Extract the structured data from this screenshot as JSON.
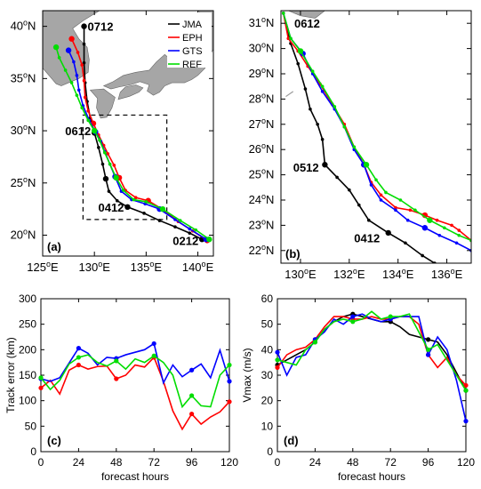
{
  "colors": {
    "JMA": "#000000",
    "EPH": "#ff0000",
    "GTS": "#0000ff",
    "REF": "#00dd00",
    "land": "#a6a6a6"
  },
  "chart_data": [
    {
      "id": "a",
      "type": "map-track",
      "panel_label": "(a)",
      "xlim": [
        125,
        141.5
      ],
      "ylim": [
        18,
        41.5
      ],
      "xticks": [
        125,
        130,
        135,
        140
      ],
      "xtick_labels": [
        "125°E",
        "130°E",
        "135°E",
        "140°E"
      ],
      "yticks": [
        20,
        25,
        30,
        35,
        40
      ],
      "ytick_labels": [
        "20°N",
        "25°N",
        "30°N",
        "35°N",
        "40°N"
      ],
      "legend": {
        "placement": "top-right",
        "entries": [
          "JMA",
          "EPH",
          "GTS",
          "REF"
        ]
      },
      "box": {
        "lon": [
          128.9,
          137.0
        ],
        "lat": [
          21.5,
          31.5
        ]
      },
      "labels": [
        {
          "text": "0712",
          "lon": 129.0,
          "lat": 40.0,
          "anchor": "left"
        },
        {
          "text": "0612",
          "lon": 130.0,
          "lat": 30.0,
          "anchor": "right"
        },
        {
          "text": "0412",
          "lon": 133.2,
          "lat": 22.7,
          "anchor": "right"
        },
        {
          "text": "0212",
          "lon": 140.4,
          "lat": 19.5,
          "anchor": "right"
        }
      ],
      "series": [
        {
          "name": "JMA",
          "points": [
            [
              140.4,
              19.6
            ],
            [
              139.2,
              20.2
            ],
            [
              137.8,
              20.8
            ],
            [
              136.3,
              21.4
            ],
            [
              134.8,
              22.1
            ],
            [
              133.2,
              22.7
            ],
            [
              132.2,
              23.3
            ],
            [
              131.4,
              24.2
            ],
            [
              131.1,
              25.4
            ],
            [
              130.8,
              26.8
            ],
            [
              130.4,
              28.4
            ],
            [
              130.0,
              29.8
            ],
            [
              129.6,
              31.2
            ],
            [
              129.3,
              32.8
            ],
            [
              129.1,
              34.6
            ],
            [
              129.0,
              36.5
            ],
            [
              129.0,
              38.3
            ],
            [
              129.0,
              40.0
            ]
          ],
          "markers": [
            [
              140.4,
              19.6
            ],
            [
              133.2,
              22.7
            ],
            [
              131.1,
              25.4
            ],
            [
              130.0,
              29.8
            ],
            [
              129.0,
              40.0
            ]
          ]
        },
        {
          "name": "EPH",
          "points": [
            [
              140.9,
              19.5
            ],
            [
              139.5,
              20.4
            ],
            [
              138.1,
              21.3
            ],
            [
              136.7,
              22.4
            ],
            [
              135.2,
              23.3
            ],
            [
              134.0,
              23.6
            ],
            [
              133.0,
              24.3
            ],
            [
              132.4,
              25.5
            ],
            [
              131.9,
              26.7
            ],
            [
              131.3,
              27.8
            ],
            [
              130.9,
              28.6
            ],
            [
              130.4,
              29.6
            ],
            [
              129.9,
              30.7
            ],
            [
              129.4,
              31.9
            ],
            [
              129.1,
              33.2
            ],
            [
              129.0,
              34.8
            ],
            [
              128.8,
              36.3
            ],
            [
              128.4,
              37.5
            ],
            [
              127.8,
              38.8
            ]
          ],
          "markers": [
            [
              140.9,
              19.5
            ],
            [
              135.2,
              23.3
            ],
            [
              132.4,
              25.5
            ],
            [
              129.9,
              30.7
            ],
            [
              127.8,
              38.8
            ]
          ]
        },
        {
          "name": "GTS",
          "points": [
            [
              140.8,
              19.6
            ],
            [
              139.2,
              20.6
            ],
            [
              137.8,
              21.5
            ],
            [
              136.3,
              22.5
            ],
            [
              134.9,
              23.0
            ],
            [
              133.6,
              23.4
            ],
            [
              132.6,
              24.2
            ],
            [
              132.0,
              25.6
            ],
            [
              131.5,
              26.8
            ],
            [
              131.0,
              28.0
            ],
            [
              130.6,
              29.0
            ],
            [
              130.1,
              29.9
            ],
            [
              129.5,
              31.0
            ],
            [
              128.9,
              32.4
            ],
            [
              128.5,
              33.9
            ],
            [
              128.3,
              35.3
            ],
            [
              128.0,
              36.6
            ],
            [
              127.5,
              37.7
            ]
          ],
          "markers": [
            [
              140.8,
              19.6
            ],
            [
              136.3,
              22.5
            ],
            [
              132.0,
              25.6
            ],
            [
              130.1,
              29.9
            ],
            [
              127.5,
              37.7
            ]
          ]
        },
        {
          "name": "REF",
          "points": [
            [
              141.1,
              19.6
            ],
            [
              139.8,
              20.5
            ],
            [
              138.3,
              21.4
            ],
            [
              136.6,
              22.5
            ],
            [
              135.0,
              23.2
            ],
            [
              133.8,
              23.4
            ],
            [
              132.8,
              24.3
            ],
            [
              132.1,
              25.5
            ],
            [
              131.5,
              26.8
            ],
            [
              131.0,
              27.9
            ],
            [
              130.5,
              29.1
            ],
            [
              130.0,
              30.0
            ],
            [
              129.4,
              31.0
            ],
            [
              128.8,
              32.2
            ],
            [
              128.3,
              33.4
            ],
            [
              127.8,
              34.6
            ],
            [
              127.2,
              35.8
            ],
            [
              126.6,
              37.0
            ],
            [
              126.3,
              38.0
            ]
          ],
          "markers": [
            [
              141.1,
              19.6
            ],
            [
              136.6,
              22.5
            ],
            [
              132.1,
              25.5
            ],
            [
              130.0,
              30.0
            ],
            [
              126.3,
              38.0
            ]
          ]
        }
      ]
    },
    {
      "id": "b",
      "type": "map-track",
      "panel_label": "(b)",
      "xlim": [
        129.2,
        137.0
      ],
      "ylim": [
        21.5,
        31.5
      ],
      "xticks": [
        130,
        132,
        134,
        136
      ],
      "xtick_labels": [
        "130°E",
        "132°E",
        "134°E",
        "136°E"
      ],
      "yticks": [
        22,
        23,
        24,
        25,
        26,
        27,
        28,
        29,
        30,
        31
      ],
      "ytick_labels": [
        "22°N",
        "23°N",
        "24°N",
        "25°N",
        "26°N",
        "27°N",
        "28°N",
        "29°N",
        "30°N",
        "31°N"
      ],
      "labels": [
        {
          "text": "0612",
          "lon": 129.6,
          "lat": 31.0,
          "anchor": "left"
        },
        {
          "text": "0512",
          "lon": 130.9,
          "lat": 25.3,
          "anchor": "right"
        },
        {
          "text": "0412",
          "lon": 133.4,
          "lat": 22.5,
          "anchor": "right"
        }
      ],
      "series": [
        {
          "name": "JMA",
          "points": [
            [
              129.3,
              31.4
            ],
            [
              129.6,
              30.2
            ],
            [
              129.9,
              29.4
            ],
            [
              130.2,
              28.4
            ],
            [
              130.4,
              27.6
            ],
            [
              130.7,
              27.0
            ],
            [
              130.9,
              26.4
            ],
            [
              131.0,
              25.4
            ],
            [
              131.5,
              24.9
            ],
            [
              132.0,
              24.4
            ],
            [
              132.4,
              23.8
            ],
            [
              132.8,
              23.2
            ],
            [
              133.6,
              22.7
            ],
            [
              134.3,
              22.3
            ],
            [
              135.0,
              21.8
            ],
            [
              135.5,
              21.5
            ]
          ],
          "markers": [
            [
              131.0,
              25.4
            ],
            [
              133.6,
              22.7
            ]
          ]
        },
        {
          "name": "EPH",
          "points": [
            [
              129.3,
              31.4
            ],
            [
              129.5,
              30.4
            ],
            [
              129.9,
              29.9
            ],
            [
              130.3,
              29.3
            ],
            [
              130.8,
              28.6
            ],
            [
              131.3,
              27.8
            ],
            [
              131.8,
              27.0
            ],
            [
              132.2,
              26.1
            ],
            [
              132.6,
              25.4
            ],
            [
              132.9,
              24.7
            ],
            [
              133.3,
              24.2
            ],
            [
              133.9,
              23.7
            ],
            [
              134.5,
              23.6
            ],
            [
              135.1,
              23.4
            ],
            [
              135.6,
              23.2
            ],
            [
              136.2,
              23.0
            ],
            [
              136.5,
              22.8
            ],
            [
              137.0,
              22.4
            ]
          ],
          "markers": [
            [
              132.6,
              25.4
            ],
            [
              135.1,
              23.4
            ]
          ]
        },
        {
          "name": "GTS",
          "points": [
            [
              129.3,
              31.4
            ],
            [
              129.6,
              30.4
            ],
            [
              130.1,
              29.8
            ],
            [
              130.5,
              29.0
            ],
            [
              130.9,
              28.3
            ],
            [
              131.4,
              27.6
            ],
            [
              131.8,
              26.9
            ],
            [
              132.2,
              26.0
            ],
            [
              132.6,
              25.4
            ],
            [
              132.9,
              24.6
            ],
            [
              133.3,
              24.0
            ],
            [
              133.9,
              23.6
            ],
            [
              134.4,
              23.2
            ],
            [
              135.1,
              22.9
            ],
            [
              135.7,
              22.6
            ],
            [
              136.4,
              22.3
            ],
            [
              137.0,
              22.0
            ]
          ],
          "markers": [
            [
              130.1,
              29.8
            ],
            [
              132.6,
              25.4
            ],
            [
              135.1,
              22.9
            ]
          ]
        },
        {
          "name": "REF",
          "points": [
            [
              129.3,
              31.4
            ],
            [
              129.6,
              30.4
            ],
            [
              130.0,
              29.9
            ],
            [
              130.5,
              29.1
            ],
            [
              130.9,
              28.5
            ],
            [
              131.4,
              27.7
            ],
            [
              131.8,
              26.9
            ],
            [
              132.2,
              26.1
            ],
            [
              132.7,
              25.4
            ],
            [
              133.1,
              24.8
            ],
            [
              133.5,
              24.3
            ],
            [
              134.1,
              24.0
            ],
            [
              134.7,
              23.6
            ],
            [
              135.3,
              23.2
            ],
            [
              135.9,
              22.9
            ],
            [
              136.5,
              22.6
            ],
            [
              137.0,
              22.4
            ]
          ],
          "markers": [
            [
              130.0,
              29.9
            ],
            [
              132.7,
              25.4
            ],
            [
              135.3,
              23.2
            ]
          ]
        }
      ]
    },
    {
      "id": "c",
      "type": "line",
      "panel_label": "(c)",
      "xlabel": "forecast hours",
      "ylabel": "Track error (km)",
      "xlim": [
        0,
        120
      ],
      "ylim": [
        0,
        300
      ],
      "xticks": [
        0,
        24,
        48,
        72,
        96,
        120
      ],
      "yticks": [
        0,
        50,
        100,
        150,
        200,
        250,
        300
      ],
      "x": [
        0,
        6,
        12,
        18,
        24,
        30,
        36,
        42,
        48,
        54,
        60,
        66,
        72,
        78,
        84,
        90,
        96,
        102,
        108,
        114,
        120
      ],
      "series": [
        {
          "name": "EPH",
          "values": [
            125,
            140,
            113,
            160,
            170,
            162,
            167,
            168,
            143,
            150,
            170,
            166,
            185,
            138,
            80,
            44,
            74,
            54,
            68,
            78,
            98
          ]
        },
        {
          "name": "GTS",
          "values": [
            143,
            138,
            145,
            174,
            203,
            193,
            170,
            185,
            183,
            190,
            195,
            200,
            212,
            135,
            170,
            147,
            160,
            172,
            145,
            199,
            138
          ]
        },
        {
          "name": "REF",
          "values": [
            145,
            122,
            140,
            172,
            185,
            190,
            175,
            168,
            178,
            162,
            182,
            175,
            188,
            175,
            150,
            88,
            110,
            90,
            88,
            150,
            170
          ]
        }
      ],
      "markers_every": 4
    },
    {
      "id": "d",
      "type": "line",
      "panel_label": "(d)",
      "xlabel": "forecast hours",
      "ylabel": "Vmax (m/s)",
      "xlim": [
        0,
        120
      ],
      "ylim": [
        0,
        60
      ],
      "xticks": [
        0,
        24,
        48,
        72,
        96,
        120
      ],
      "yticks": [
        0,
        10,
        20,
        30,
        40,
        50,
        60
      ],
      "x": [
        0,
        6,
        12,
        18,
        24,
        30,
        36,
        42,
        48,
        54,
        60,
        66,
        72,
        78,
        84,
        90,
        96,
        102,
        108,
        114,
        120
      ],
      "series": [
        {
          "name": "JMA",
          "values": [
            34,
            36,
            38,
            40,
            43,
            48,
            51,
            53,
            54,
            53,
            52,
            51,
            51,
            49,
            46,
            45,
            44,
            43,
            38,
            31,
            24
          ]
        },
        {
          "name": "EPH",
          "values": [
            33,
            38,
            40,
            41,
            44,
            49,
            53,
            53,
            52,
            52,
            53,
            52,
            52,
            53,
            53,
            50,
            38,
            33,
            37,
            30,
            26
          ]
        },
        {
          "name": "GTS",
          "values": [
            39,
            30,
            37,
            38,
            44,
            47,
            52,
            50,
            53,
            54,
            52,
            51,
            52,
            53,
            53,
            53,
            38,
            45,
            40,
            28,
            12
          ]
        },
        {
          "name": "REF",
          "values": [
            36,
            35,
            34,
            40,
            43,
            48,
            51,
            52,
            51,
            52,
            55,
            52,
            53,
            53,
            54,
            47,
            40,
            42,
            36,
            30,
            24
          ]
        }
      ],
      "markers_every": 4
    }
  ]
}
